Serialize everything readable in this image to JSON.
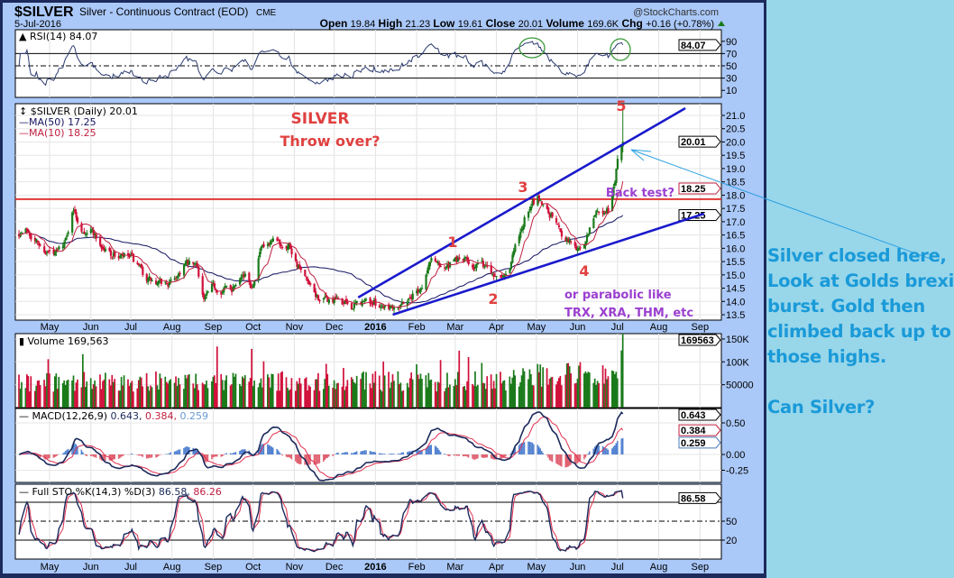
{
  "header": {
    "symbol": "$SILVER",
    "name": "Silver - Continuous Contract (EOD)",
    "exchange": "CME",
    "watermark": "@StockCharts.com",
    "date": "5-Jul-2016",
    "quote": [
      {
        "label": "Open",
        "value": "19.84"
      },
      {
        "label": "High",
        "value": "21.23"
      },
      {
        "label": "Low",
        "value": "19.61"
      },
      {
        "label": "Close",
        "value": "20.01"
      },
      {
        "label": "Volume",
        "value": "169.6K"
      },
      {
        "label": "Chg",
        "value": "+0.16 (+0.78%)"
      }
    ]
  },
  "annotations": {
    "title": "SILVER",
    "subtitle": "Throw over?",
    "waves": [
      "1",
      "2",
      "3",
      "4",
      "5"
    ],
    "back_test": "Back test?",
    "parabolic_1": "or parabolic like",
    "parabolic_2": "TRX, XRA, THM, etc"
  },
  "right_note": {
    "lines": [
      "Silver closed here,",
      "Look at Golds brexit",
      "burst. Gold then",
      "climbed back up to",
      "those highs."
    ],
    "question": "Can Silver?"
  },
  "colors": {
    "up": "#1a7a1a",
    "down": "#d0103a",
    "ma50": "#141460",
    "ma10": "#c02040",
    "trend": "#1a1acc",
    "resistance": "#e03838",
    "note": "#1a9ad8",
    "annot_red": "#e04040",
    "annot_purple": "#9b40d0"
  },
  "chart_data": {
    "type": "candlestick",
    "title": "$SILVER (Daily)",
    "x_ticks": [
      {
        "label": "May",
        "date": "2015-05-01"
      },
      {
        "label": "Jun",
        "date": "2015-06-01"
      },
      {
        "label": "Jul",
        "date": "2015-07-01"
      },
      {
        "label": "Aug",
        "date": "2015-08-01"
      },
      {
        "label": "Sep",
        "date": "2015-09-01"
      },
      {
        "label": "Oct",
        "date": "2015-10-01"
      },
      {
        "label": "Nov",
        "date": "2015-11-01"
      },
      {
        "label": "Dec",
        "date": "2015-12-01"
      },
      {
        "label": "2016",
        "date": "2016-01-01"
      },
      {
        "label": "Feb",
        "date": "2016-02-01"
      },
      {
        "label": "Mar",
        "date": "2016-03-01"
      },
      {
        "label": "Apr",
        "date": "2016-04-01"
      },
      {
        "label": "May",
        "date": "2016-05-01"
      },
      {
        "label": "Jun",
        "date": "2016-06-01"
      },
      {
        "label": "Jul",
        "date": "2016-07-01"
      },
      {
        "label": "Aug",
        "date": "2016-08-01"
      },
      {
        "label": "Sep",
        "date": "2016-09-01"
      }
    ],
    "price": {
      "legend": "$SILVER (Daily) 20.01",
      "ma50_legend": "MA(50) 17.25",
      "ma10_legend": "MA(10) 18.25",
      "ylim": [
        13.3,
        21.45
      ],
      "y_ticks": [
        "13.5",
        "14.0",
        "14.5",
        "15.0",
        "15.5",
        "16.0",
        "16.5",
        "17.0",
        "17.5",
        "18.0",
        "18.5",
        "19.0",
        "19.5",
        "20.0",
        "20.5",
        "21.0"
      ],
      "markers": [
        {
          "value": 20.01,
          "label": "20.01",
          "style": "black"
        },
        {
          "value": 18.25,
          "label": "18.25",
          "style": "red"
        },
        {
          "value": 17.25,
          "label": "17.25",
          "style": "black"
        }
      ],
      "last_bar": {
        "date": "2016-07-05",
        "open": 19.84,
        "high": 21.23,
        "low": 19.61,
        "close": 20.01,
        "prev_close": 19.85
      },
      "close_waypoints": [
        [
          "2015-04-08",
          16.6
        ],
        [
          "2015-04-15",
          16.7
        ],
        [
          "2015-04-25",
          16.0
        ],
        [
          "2015-05-05",
          15.7
        ],
        [
          "2015-05-14",
          16.4
        ],
        [
          "2015-05-18",
          17.5
        ],
        [
          "2015-05-25",
          16.8
        ],
        [
          "2015-06-02",
          16.7
        ],
        [
          "2015-06-10",
          16.0
        ],
        [
          "2015-06-20",
          15.7
        ],
        [
          "2015-07-01",
          15.6
        ],
        [
          "2015-07-10",
          15.0
        ],
        [
          "2015-07-20",
          14.6
        ],
        [
          "2015-08-01",
          14.7
        ],
        [
          "2015-08-10",
          15.4
        ],
        [
          "2015-08-20",
          15.3
        ],
        [
          "2015-08-25",
          14.1
        ],
        [
          "2015-09-01",
          14.5
        ],
        [
          "2015-09-15",
          14.5
        ],
        [
          "2015-09-22",
          15.2
        ],
        [
          "2015-09-30",
          14.6
        ],
        [
          "2015-10-06",
          15.9
        ],
        [
          "2015-10-15",
          16.1
        ],
        [
          "2015-10-28",
          16.2
        ],
        [
          "2015-11-05",
          15.2
        ],
        [
          "2015-11-15",
          14.2
        ],
        [
          "2015-11-25",
          14.0
        ],
        [
          "2015-12-05",
          14.0
        ],
        [
          "2015-12-15",
          13.8
        ],
        [
          "2015-12-25",
          14.0
        ],
        [
          "2016-01-05",
          13.9
        ],
        [
          "2016-01-15",
          13.9
        ],
        [
          "2016-01-25",
          14.1
        ],
        [
          "2016-02-05",
          14.6
        ],
        [
          "2016-02-12",
          15.6
        ],
        [
          "2016-02-25",
          15.3
        ],
        [
          "2016-03-05",
          15.6
        ],
        [
          "2016-03-15",
          15.4
        ],
        [
          "2016-03-25",
          15.3
        ],
        [
          "2016-04-01",
          15.0
        ],
        [
          "2016-04-10",
          15.3
        ],
        [
          "2016-04-15",
          16.0
        ],
        [
          "2016-04-22",
          17.1
        ],
        [
          "2016-04-28",
          17.6
        ],
        [
          "2016-05-02",
          17.9
        ],
        [
          "2016-05-12",
          17.3
        ],
        [
          "2016-05-20",
          16.6
        ],
        [
          "2016-05-30",
          16.1
        ],
        [
          "2016-06-03",
          15.9
        ],
        [
          "2016-06-08",
          16.4
        ],
        [
          "2016-06-15",
          17.4
        ],
        [
          "2016-06-25",
          17.4
        ],
        [
          "2016-06-29",
          18.5
        ],
        [
          "2016-07-01",
          19.2
        ],
        [
          "2016-07-04",
          19.85
        ]
      ],
      "resistance": 17.85,
      "trendlines": [
        {
          "name": "upper-channel",
          "from": [
            "2015-12-19",
            14.15
          ],
          "to": [
            "2016-08-21",
            21.27
          ]
        },
        {
          "name": "lower-channel",
          "from": [
            "2016-01-14",
            13.5
          ],
          "to": [
            "2016-09-04",
            17.3
          ]
        }
      ]
    },
    "rsi": {
      "legend": "RSI(14) 84.07",
      "value": 84.07,
      "y_ticks": [
        "90",
        "70",
        "50",
        "30",
        "10"
      ],
      "ylim": [
        0,
        100
      ],
      "marker": "84.07"
    },
    "volume": {
      "legend": "Volume 169,563",
      "value": 169563,
      "marker": "169563",
      "y_ticks": [
        {
          "label": "150K",
          "value": 150000
        },
        {
          "label": "100K",
          "value": 100000
        },
        {
          "label": "50000",
          "value": 50000
        }
      ]
    },
    "macd": {
      "legend": "MACD(12,26,9)",
      "macd": 0.643,
      "signal": 0.384,
      "hist": 0.259,
      "macd_label": "0.643",
      "signal_label": "0.384",
      "hist_label": "0.259",
      "y_ticks": [
        {
          "label": "0.50",
          "value": 0.5
        },
        {
          "label": "0.00",
          "value": 0
        },
        {
          "label": "-0.25",
          "value": -0.25
        }
      ]
    },
    "sto": {
      "legend": "Full STO %K(14,3) %D(3)",
      "k": 86.58,
      "d": 86.26,
      "k_label": "86.58",
      "d_label": "86.26",
      "y_ticks": [
        {
          "label": "50",
          "value": 50
        },
        {
          "label": "20",
          "value": 20
        }
      ]
    }
  }
}
